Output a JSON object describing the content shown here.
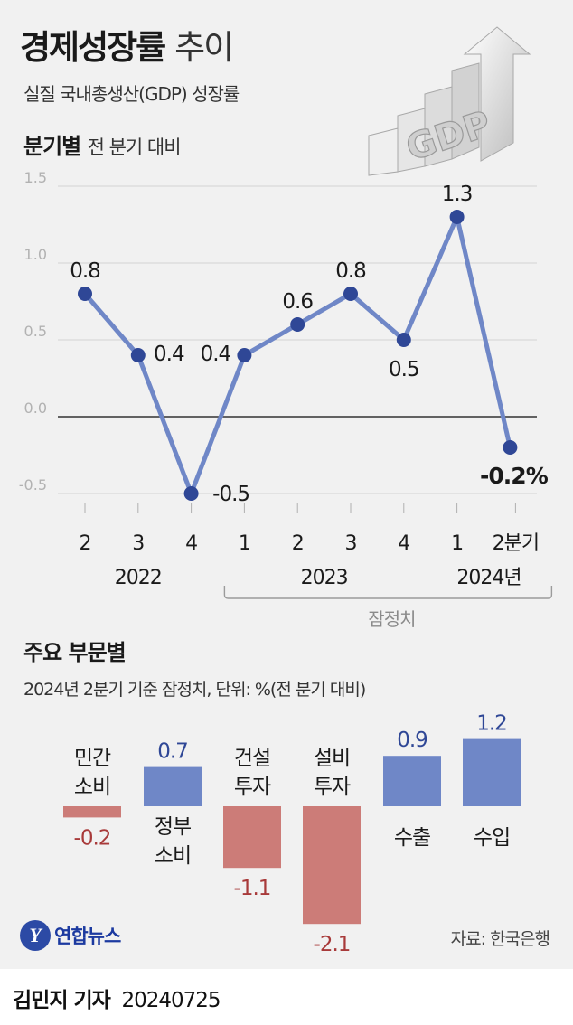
{
  "title": {
    "main": "경제성장률",
    "rest": "추이"
  },
  "subtitle": "실질 국내총생산(GDP) 성장률",
  "decoration_text": "GDP",
  "quarterly": {
    "heading": "분기별",
    "subheading": "전 분기 대비"
  },
  "sectors": {
    "heading": "주요 부문별",
    "note": "2024년 2분기 기준 잠정치, 단위: %(전 분기 대비)"
  },
  "source": "자료: 한국은행",
  "logo": {
    "mark": "Y",
    "name": "연합뉴스"
  },
  "byline": {
    "reporter": "김민지 기자",
    "date": "20240725"
  },
  "colors": {
    "line": "#6f87c7",
    "dot": "#2f4796",
    "positive_bar": "#6f87c7",
    "negative_bar": "#cc7c78",
    "positive_text": "#2f4796",
    "negative_text": "#a83a3a"
  },
  "chart_data": [
    {
      "type": "line",
      "title": "분기별 전 분기 대비",
      "x": [
        "2",
        "3",
        "4",
        "1",
        "2",
        "3",
        "4",
        "1",
        "2분기"
      ],
      "years": [
        {
          "label": "2022",
          "from": 0,
          "to": 2
        },
        {
          "label": "2023",
          "from": 3,
          "to": 6
        },
        {
          "label": "2024년",
          "from": 7,
          "to": 8
        }
      ],
      "values": [
        0.8,
        0.4,
        -0.5,
        0.4,
        0.6,
        0.8,
        0.5,
        1.3,
        -0.2
      ],
      "value_labels": [
        "0.8",
        "0.4",
        "-0.5",
        "0.4",
        "0.6",
        "0.8",
        "0.5",
        "1.3",
        "-0.2%"
      ],
      "yticks": [
        "1.5",
        "1.0",
        "0.5",
        "0.0",
        "-0.5"
      ],
      "ylim": [
        -0.5,
        1.5
      ],
      "provisional_label": "잠정치",
      "provisional_from": 3,
      "provisional_to": 8
    },
    {
      "type": "bar",
      "title": "주요 부문별",
      "categories": [
        [
          "민간",
          "소비"
        ],
        [
          "정부",
          "소비"
        ],
        [
          "건설",
          "투자"
        ],
        [
          "설비",
          "투자"
        ],
        [
          "수출"
        ],
        [
          "수입"
        ]
      ],
      "values": [
        -0.2,
        0.7,
        -1.1,
        -2.1,
        0.9,
        1.2
      ],
      "value_labels": [
        "-0.2",
        "0.7",
        "-1.1",
        "-2.1",
        "0.9",
        "1.2"
      ]
    }
  ]
}
